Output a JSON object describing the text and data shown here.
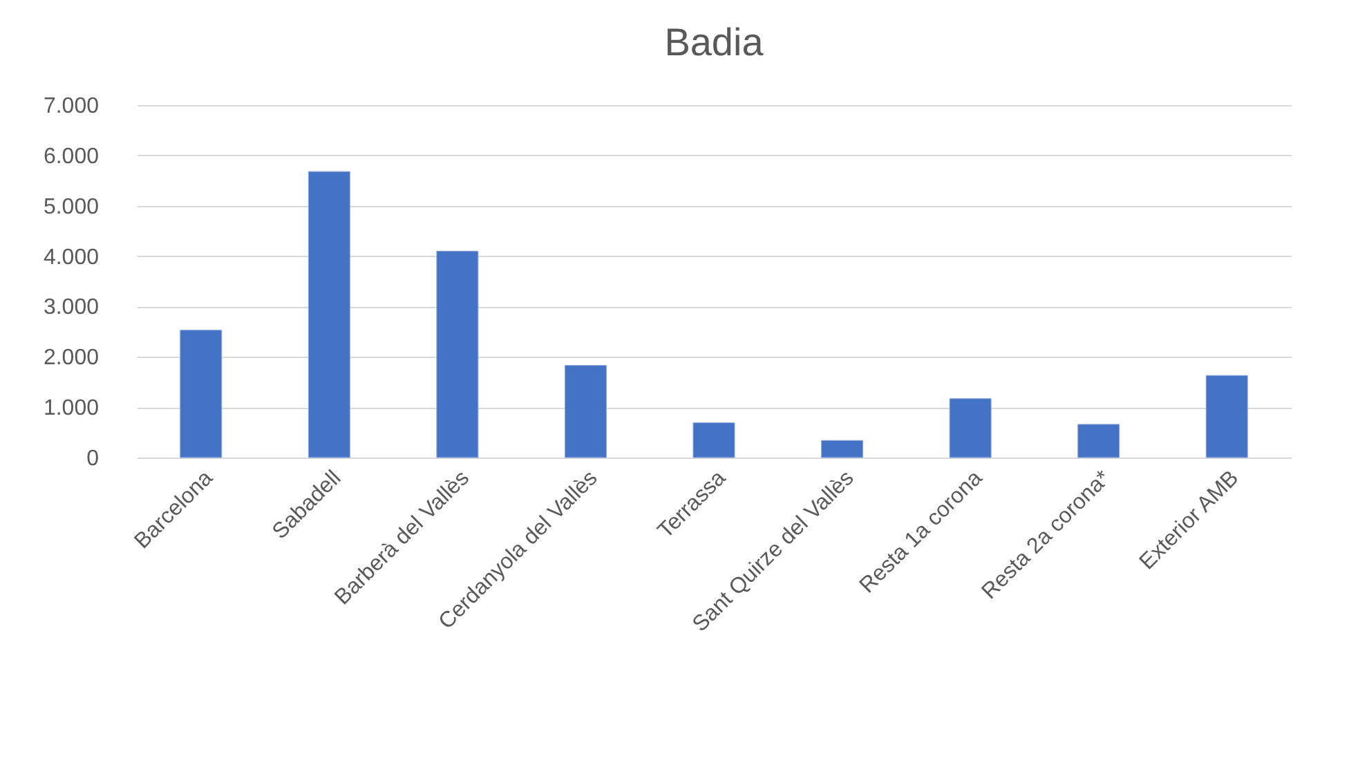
{
  "chart_data": {
    "type": "bar",
    "title": "Badia",
    "categories": [
      "Barcelona",
      "Sabadell",
      "Barberà del Vallès",
      "Cerdanyola del Vallès",
      "Terrassa",
      "Sant Quirze del Vallès",
      "Resta 1a corona",
      "Resta 2a corona*",
      "Exterior AMB"
    ],
    "values": [
      2530,
      5680,
      4100,
      1830,
      690,
      340,
      1170,
      660,
      1630
    ],
    "color": "#4472c4",
    "ylim": [
      0,
      7000
    ],
    "yticks": [
      {
        "value": 0,
        "label": "0"
      },
      {
        "value": 1000,
        "label": "1.000"
      },
      {
        "value": 2000,
        "label": "2.000"
      },
      {
        "value": 3000,
        "label": "3.000"
      },
      {
        "value": 4000,
        "label": "4.000"
      },
      {
        "value": 5000,
        "label": "5.000"
      },
      {
        "value": 6000,
        "label": "6.000"
      },
      {
        "value": 7000,
        "label": "7.000"
      }
    ],
    "grid": "y"
  }
}
